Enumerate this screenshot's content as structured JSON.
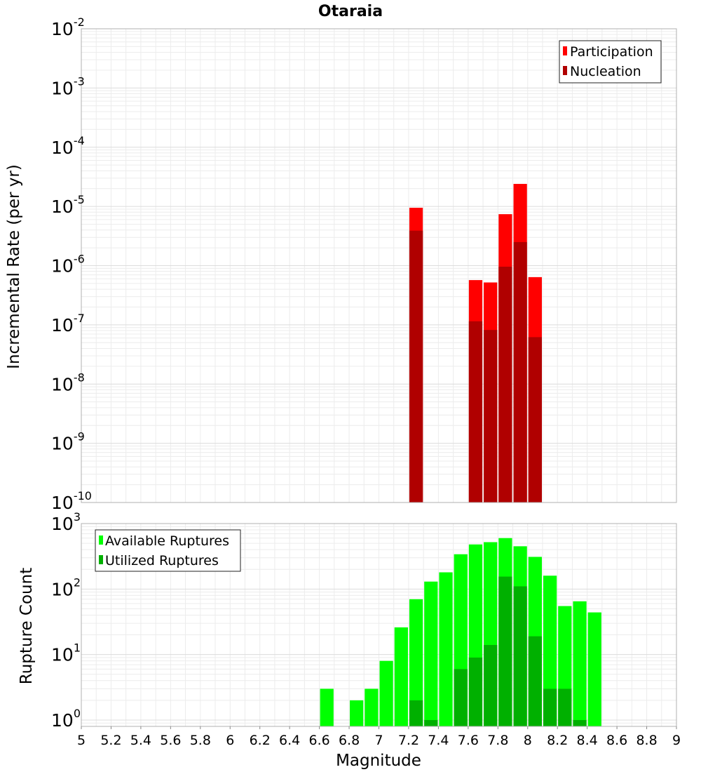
{
  "chart_data": [
    {
      "type": "bar",
      "title": "Otaraia",
      "xlabel": "",
      "ylabel": "Incremental Rate (per yr)",
      "yscale": "log",
      "ylim": [
        1e-10,
        0.01
      ],
      "xlim": [
        5,
        9
      ],
      "y_tick_exponents": [
        -10,
        -9,
        -8,
        -7,
        -6,
        -5,
        -4,
        -3,
        -2
      ],
      "legend_position": "top-right",
      "bar_width": 0.1,
      "series": [
        {
          "name": "Participation",
          "color": "#ff0000",
          "points": [
            {
              "x": 7.25,
              "y": 9.5e-06
            },
            {
              "x": 7.65,
              "y": 5.7e-07
            },
            {
              "x": 7.75,
              "y": 5.2e-07
            },
            {
              "x": 7.85,
              "y": 7.4e-06
            },
            {
              "x": 7.95,
              "y": 2.4e-05
            },
            {
              "x": 8.05,
              "y": 6.4e-07
            }
          ]
        },
        {
          "name": "Nucleation",
          "color": "#b00000",
          "points": [
            {
              "x": 7.25,
              "y": 3.9e-06
            },
            {
              "x": 7.65,
              "y": 1.15e-07
            },
            {
              "x": 7.75,
              "y": 8.2e-08
            },
            {
              "x": 7.85,
              "y": 9.6e-07
            },
            {
              "x": 7.95,
              "y": 2.5e-06
            },
            {
              "x": 8.05,
              "y": 6.2e-08
            }
          ]
        }
      ]
    },
    {
      "type": "bar",
      "title": "",
      "xlabel": "Magnitude",
      "ylabel": "Rupture Count",
      "yscale": "log",
      "ylim": [
        0.8,
        1000
      ],
      "xlim": [
        5,
        9
      ],
      "y_tick_exponents": [
        0,
        1,
        2,
        3
      ],
      "x_ticks": [
        "5",
        "5.2",
        "5.4",
        "5.6",
        "5.8",
        "6",
        "6.2",
        "6.4",
        "6.6",
        "6.8",
        "7",
        "7.2",
        "7.4",
        "7.6",
        "7.8",
        "8",
        "8.2",
        "8.4",
        "8.6",
        "8.8",
        "9"
      ],
      "legend_position": "top-left",
      "bar_width": 0.1,
      "series": [
        {
          "name": "Available Ruptures",
          "color": "#00ff00",
          "points": [
            {
              "x": 6.65,
              "y": 3
            },
            {
              "x": 6.85,
              "y": 2
            },
            {
              "x": 6.95,
              "y": 3
            },
            {
              "x": 7.05,
              "y": 8
            },
            {
              "x": 7.15,
              "y": 26
            },
            {
              "x": 7.25,
              "y": 70
            },
            {
              "x": 7.35,
              "y": 130
            },
            {
              "x": 7.45,
              "y": 180
            },
            {
              "x": 7.55,
              "y": 340
            },
            {
              "x": 7.65,
              "y": 480
            },
            {
              "x": 7.75,
              "y": 520
            },
            {
              "x": 7.85,
              "y": 600
            },
            {
              "x": 7.95,
              "y": 450
            },
            {
              "x": 8.05,
              "y": 310
            },
            {
              "x": 8.15,
              "y": 160
            },
            {
              "x": 8.25,
              "y": 55
            },
            {
              "x": 8.35,
              "y": 65
            },
            {
              "x": 8.45,
              "y": 44
            }
          ]
        },
        {
          "name": "Utilized Ruptures",
          "color": "#00b000",
          "points": [
            {
              "x": 7.25,
              "y": 2
            },
            {
              "x": 7.35,
              "y": 1
            },
            {
              "x": 7.55,
              "y": 6
            },
            {
              "x": 7.65,
              "y": 9
            },
            {
              "x": 7.75,
              "y": 14
            },
            {
              "x": 7.85,
              "y": 155
            },
            {
              "x": 7.95,
              "y": 110
            },
            {
              "x": 8.05,
              "y": 19
            },
            {
              "x": 8.15,
              "y": 3
            },
            {
              "x": 8.25,
              "y": 3
            },
            {
              "x": 8.35,
              "y": 1
            }
          ]
        }
      ]
    }
  ]
}
